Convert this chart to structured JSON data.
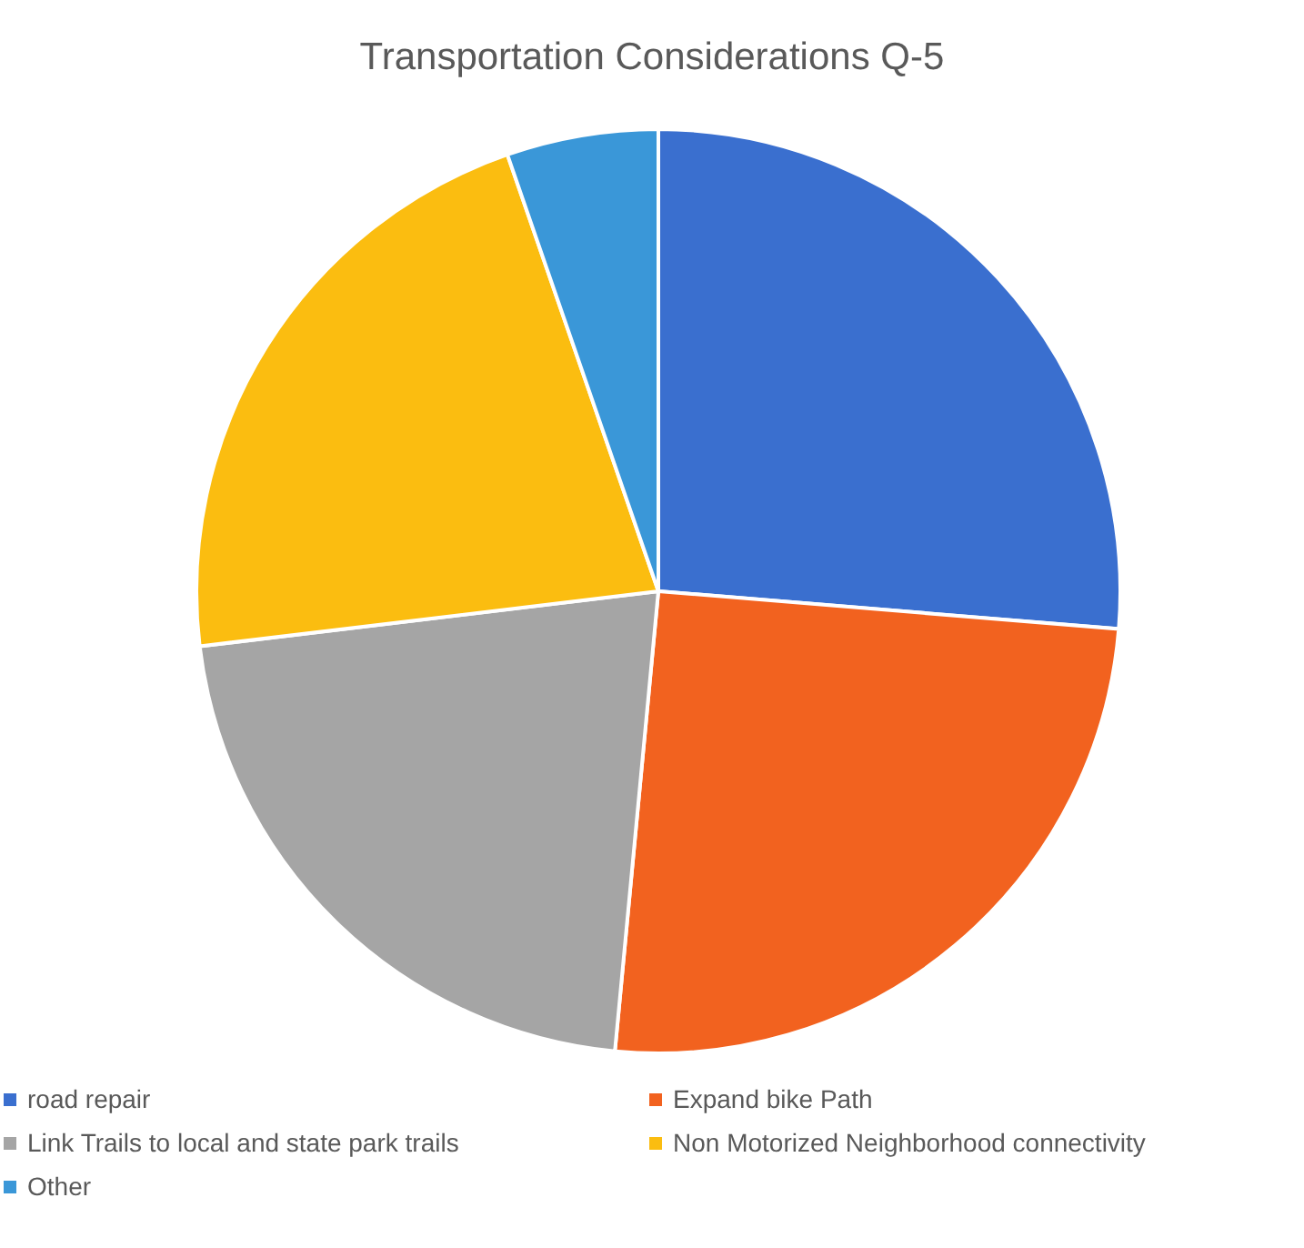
{
  "chart_data": {
    "type": "pie",
    "title": "Transportation Considerations Q-5",
    "categories": [
      "road repair",
      "Expand bike Path",
      "Link Trails to local and state park trails",
      "Non Motorized Neighborhood connectivity",
      "Other"
    ],
    "values": [
      26.3,
      25.2,
      21.6,
      21.6,
      5.3
    ],
    "colors": [
      "#3a6fcf",
      "#f2621f",
      "#a5a5a5",
      "#fbbd10",
      "#3a97d8"
    ],
    "legend": "bottom"
  }
}
